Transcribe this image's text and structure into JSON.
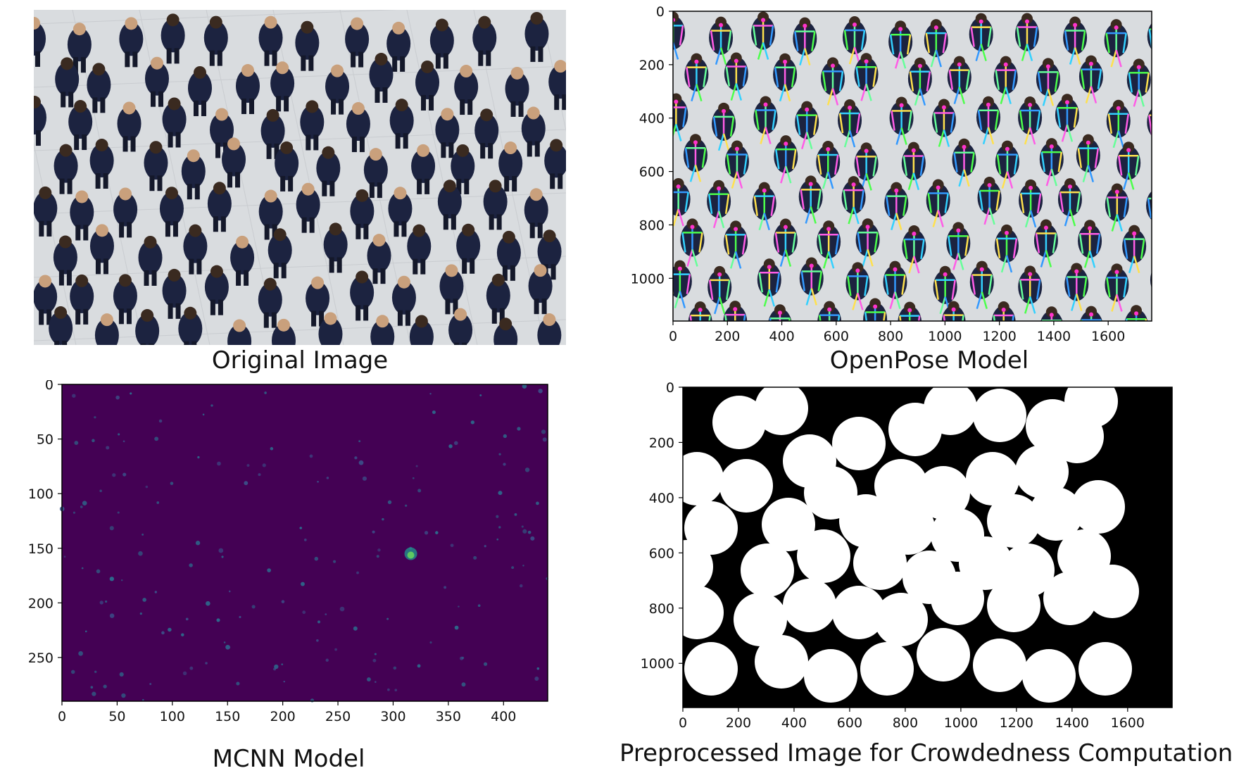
{
  "panels": [
    {
      "id": "original",
      "caption": "Original Image",
      "content": "photo"
    },
    {
      "id": "openpose",
      "caption": "OpenPose Model",
      "x_ticks": [
        "0",
        "200",
        "400",
        "600",
        "800",
        "1000",
        "1200",
        "1400",
        "1600"
      ],
      "y_ticks": [
        "0",
        "200",
        "400",
        "600",
        "800",
        "1000"
      ],
      "xlim": [
        0,
        1760
      ],
      "ylim": [
        1160,
        0
      ]
    },
    {
      "id": "mcnn",
      "caption": "MCNN Model",
      "x_ticks": [
        "0",
        "50",
        "100",
        "150",
        "200",
        "250",
        "300",
        "350",
        "400"
      ],
      "y_ticks": [
        "0",
        "50",
        "100",
        "150",
        "200",
        "250"
      ],
      "xlim": [
        0,
        440
      ],
      "ylim": [
        290,
        0
      ],
      "colormap_bg": "#440154"
    },
    {
      "id": "preprocessed",
      "caption": "Preprocessed Image for Crowdedness Computation",
      "x_ticks": [
        "0",
        "200",
        "400",
        "600",
        "800",
        "1000",
        "1200",
        "1400",
        "1600"
      ],
      "y_ticks": [
        "0",
        "200",
        "400",
        "600",
        "800",
        "1000"
      ],
      "xlim": [
        0,
        1760
      ],
      "ylim": [
        1160,
        0
      ]
    }
  ],
  "colors": {
    "floor": "#d9dcdf",
    "shirt": "#1c2340",
    "viridis_bg": "#440154",
    "viridis_mid": "#21918c",
    "viridis_hi": "#5ec962"
  }
}
